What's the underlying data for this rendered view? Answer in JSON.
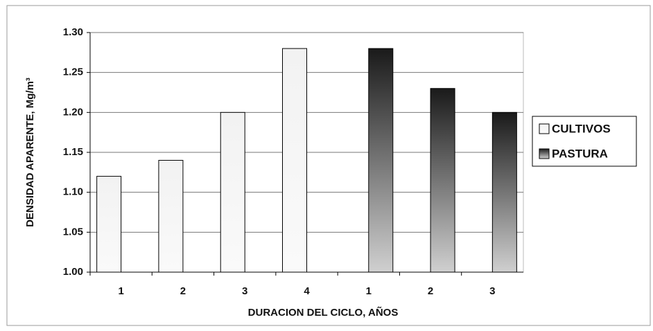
{
  "chart_data": {
    "type": "bar",
    "categories": [
      "1",
      "2",
      "3",
      "4",
      "1",
      "2",
      "3"
    ],
    "series": [
      {
        "name": "CULTIVOS",
        "color": "#f2f2f2",
        "values": [
          1.12,
          1.14,
          1.2,
          1.28,
          null,
          null,
          null
        ]
      },
      {
        "name": "PASTURA",
        "color": "#1a1a1a",
        "values": [
          null,
          null,
          null,
          null,
          1.28,
          1.23,
          1.2
        ]
      }
    ],
    "xlabel": "DURACION DEL CICLO, AÑOS",
    "ylabel": "DENSIDAD APARENTE, Mg/m³",
    "ylim": [
      1.0,
      1.3
    ],
    "yticks": [
      {
        "value": 1.0,
        "label": "1.00"
      },
      1.05,
      {
        "value": 1.1,
        "label": "1.10"
      },
      1.15,
      {
        "value": 1.2,
        "label": "1.20"
      },
      1.25,
      {
        "value": 1.3,
        "label": "1.30"
      }
    ],
    "grid": true,
    "legend": "right"
  }
}
